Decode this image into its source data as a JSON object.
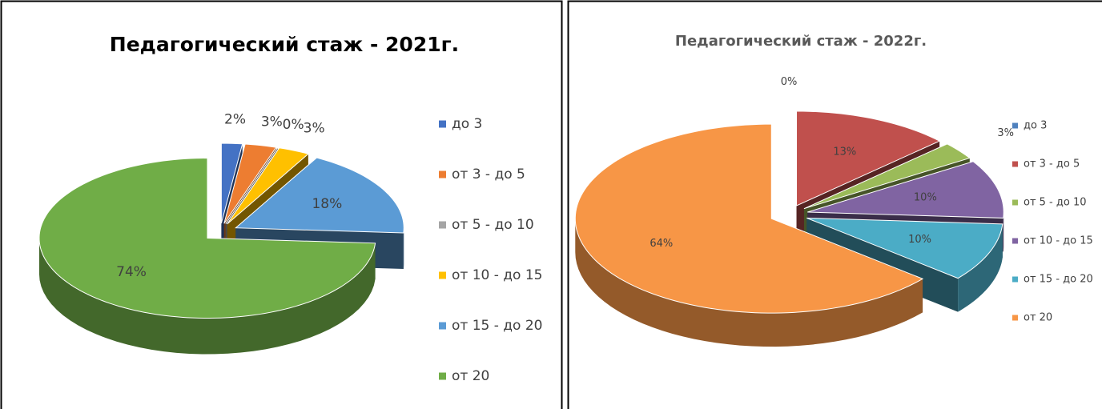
{
  "chart_data": [
    {
      "type": "pie",
      "title": "Педагогический стаж - 2021г.",
      "categories": [
        "до 3",
        "от 3 - до 5",
        "от 5 - до 10",
        "от 10 - до 15",
        "от 15 - до 20",
        "от 20"
      ],
      "values": [
        2,
        3,
        0,
        3,
        18,
        74
      ],
      "value_labels": [
        "2%",
        "3%",
        "0%",
        "3%",
        "18%",
        "74%"
      ],
      "colors": [
        "#4472c4",
        "#ed7d31",
        "#a5a5a5",
        "#ffc000",
        "#5b9bd5",
        "#70ad47"
      ],
      "legend": "right"
    },
    {
      "type": "pie",
      "title": "Педагогический стаж - 2022г.",
      "categories": [
        "до 3",
        "от 3 - до 5",
        "от 5 - до 10",
        "от 10 - до 15",
        "от 15 - до 20",
        "от 20"
      ],
      "values": [
        0,
        13,
        3,
        10,
        10,
        64
      ],
      "value_labels": [
        "0%",
        "13%",
        "3%",
        "10%",
        "10%",
        "64%"
      ],
      "colors": [
        "#4f81bd",
        "#c0504d",
        "#9bbb59",
        "#8064a2",
        "#4bacc6",
        "#f79646"
      ],
      "legend": "right"
    }
  ]
}
